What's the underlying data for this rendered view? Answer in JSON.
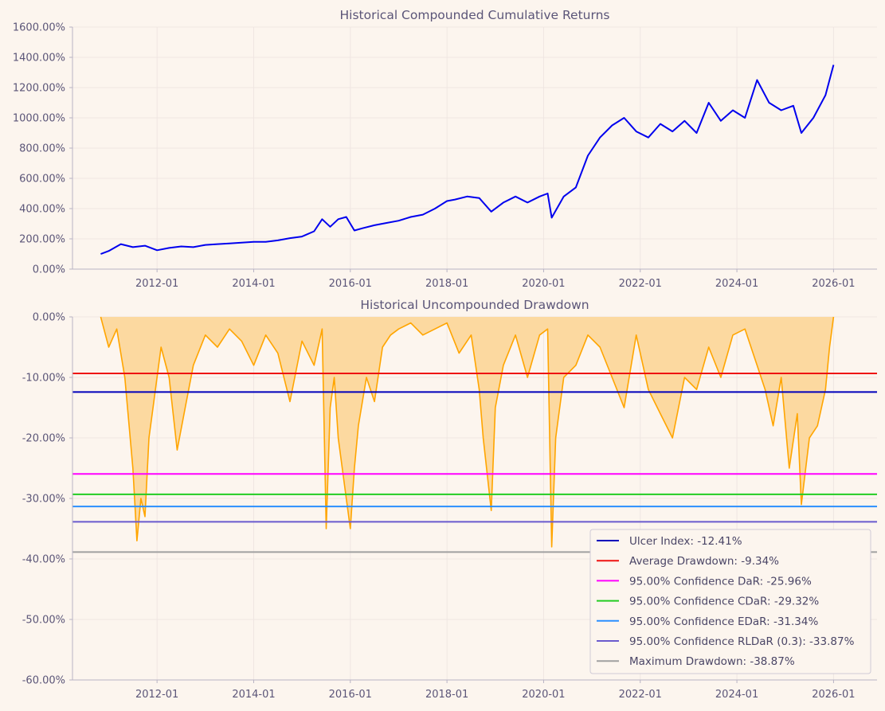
{
  "chart_data": [
    {
      "type": "line",
      "title": "Historical Compounded Cumulative Returns",
      "xlabel": "",
      "ylabel": "",
      "ylim": [
        0,
        1600
      ],
      "yticks": [
        "0.00%",
        "200.00%",
        "400.00%",
        "600.00%",
        "800.00%",
        "1000.00%",
        "1200.00%",
        "1400.00%",
        "1600.00%"
      ],
      "xticks": [
        "2012-01",
        "2014-01",
        "2016-01",
        "2018-01",
        "2020-01",
        "2022-01",
        "2024-01",
        "2026-01"
      ],
      "grid": true,
      "series": [
        {
          "color": "#0000ee",
          "x": [
            "2010-11",
            "2011-01",
            "2011-04",
            "2011-07",
            "2011-10",
            "2012-01",
            "2012-04",
            "2012-07",
            "2012-10",
            "2013-01",
            "2013-04",
            "2013-07",
            "2013-10",
            "2014-01",
            "2014-04",
            "2014-07",
            "2014-10",
            "2015-01",
            "2015-04",
            "2015-06",
            "2015-08",
            "2015-10",
            "2015-12",
            "2016-02",
            "2016-04",
            "2016-07",
            "2016-10",
            "2017-01",
            "2017-04",
            "2017-07",
            "2017-10",
            "2018-01",
            "2018-03",
            "2018-06",
            "2018-09",
            "2018-12",
            "2019-03",
            "2019-06",
            "2019-09",
            "2019-12",
            "2020-02",
            "2020-03",
            "2020-06",
            "2020-09",
            "2020-12",
            "2021-03",
            "2021-06",
            "2021-09",
            "2021-12",
            "2022-03",
            "2022-06",
            "2022-09",
            "2022-12",
            "2023-03",
            "2023-06",
            "2023-09",
            "2023-12",
            "2024-03",
            "2024-06",
            "2024-09",
            "2024-12",
            "2025-03",
            "2025-05",
            "2025-08",
            "2025-11",
            "2026-01"
          ],
          "values": [
            100,
            120,
            165,
            145,
            155,
            125,
            140,
            150,
            145,
            160,
            165,
            170,
            175,
            180,
            180,
            190,
            205,
            215,
            250,
            330,
            280,
            330,
            345,
            255,
            270,
            290,
            305,
            320,
            345,
            360,
            400,
            450,
            460,
            480,
            470,
            380,
            440,
            480,
            440,
            480,
            500,
            340,
            480,
            540,
            750,
            870,
            950,
            1000,
            910,
            870,
            960,
            910,
            980,
            900,
            1100,
            980,
            1050,
            1000,
            1250,
            1100,
            1050,
            1080,
            900,
            1000,
            1150,
            1350
          ]
        }
      ]
    },
    {
      "type": "area",
      "title": "Historical Uncompounded Drawdown",
      "xlabel": "",
      "ylabel": "",
      "ylim": [
        -60,
        0
      ],
      "yticks": [
        "0.00%",
        "-10.00%",
        "-20.00%",
        "-30.00%",
        "-40.00%",
        "-50.00%",
        "-60.00%"
      ],
      "xticks": [
        "2012-01",
        "2014-01",
        "2016-01",
        "2018-01",
        "2020-01",
        "2022-01",
        "2024-01",
        "2026-01"
      ],
      "grid": true,
      "legend_position": "bottom-right",
      "drawdown_color": "#ffa500",
      "drawdown_fill": "#fcd9a0",
      "drawdown": {
        "x": [
          "2010-11",
          "2011-01",
          "2011-03",
          "2011-05",
          "2011-07",
          "2011-08",
          "2011-09",
          "2011-10",
          "2011-11",
          "2011-12",
          "2012-02",
          "2012-04",
          "2012-06",
          "2012-08",
          "2012-10",
          "2013-01",
          "2013-04",
          "2013-07",
          "2013-10",
          "2014-01",
          "2014-04",
          "2014-07",
          "2014-10",
          "2015-01",
          "2015-04",
          "2015-06",
          "2015-07",
          "2015-08",
          "2015-09",
          "2015-10",
          "2015-12",
          "2016-01",
          "2016-02",
          "2016-03",
          "2016-05",
          "2016-07",
          "2016-09",
          "2016-11",
          "2017-01",
          "2017-04",
          "2017-07",
          "2017-10",
          "2018-01",
          "2018-04",
          "2018-07",
          "2018-09",
          "2018-10",
          "2018-12",
          "2019-01",
          "2019-03",
          "2019-06",
          "2019-09",
          "2019-12",
          "2020-02",
          "2020-03",
          "2020-04",
          "2020-06",
          "2020-09",
          "2020-12",
          "2021-03",
          "2021-06",
          "2021-09",
          "2021-12",
          "2022-03",
          "2022-06",
          "2022-09",
          "2022-12",
          "2023-03",
          "2023-06",
          "2023-09",
          "2023-12",
          "2024-03",
          "2024-06",
          "2024-08",
          "2024-10",
          "2024-12",
          "2025-02",
          "2025-04",
          "2025-05",
          "2025-07",
          "2025-09",
          "2025-11",
          "2025-12",
          "2026-01"
        ],
        "values": [
          0,
          -5,
          -2,
          -10,
          -25,
          -37,
          -30,
          -33,
          -20,
          -15,
          -5,
          -10,
          -22,
          -15,
          -8,
          -3,
          -5,
          -2,
          -4,
          -8,
          -3,
          -6,
          -14,
          -4,
          -8,
          -2,
          -35,
          -15,
          -10,
          -20,
          -30,
          -35,
          -25,
          -18,
          -10,
          -14,
          -5,
          -3,
          -2,
          -1,
          -3,
          -2,
          -1,
          -6,
          -3,
          -12,
          -20,
          -32,
          -15,
          -8,
          -3,
          -10,
          -3,
          -2,
          -38,
          -20,
          -10,
          -8,
          -3,
          -5,
          -10,
          -15,
          -3,
          -12,
          -16,
          -20,
          -10,
          -12,
          -5,
          -10,
          -3,
          -2,
          -8,
          -12,
          -18,
          -10,
          -25,
          -16,
          -31,
          -20,
          -18,
          -12,
          -5,
          0
        ]
      },
      "reference_lines": [
        {
          "label": "Ulcer Index: -12.41%",
          "value": -12.41,
          "color": "#0000bb"
        },
        {
          "label": "Average Drawdown: -9.34%",
          "value": -9.34,
          "color": "#ee1111"
        },
        {
          "label": "95.00% Confidence DaR: -25.96%",
          "value": -25.96,
          "color": "#ff00ff"
        },
        {
          "label": "95.00% Confidence CDaR: -29.32%",
          "value": -29.32,
          "color": "#22cc22"
        },
        {
          "label": "95.00% Confidence EDaR: -31.34%",
          "value": -31.34,
          "color": "#2a8fff"
        },
        {
          "label": "95.00% Confidence RLDaR (0.3): -33.87%",
          "value": -33.87,
          "color": "#6a5acd"
        },
        {
          "label": "Maximum Drawdown: -38.87%",
          "value": -38.87,
          "color": "#a0a0a0"
        }
      ]
    }
  ]
}
